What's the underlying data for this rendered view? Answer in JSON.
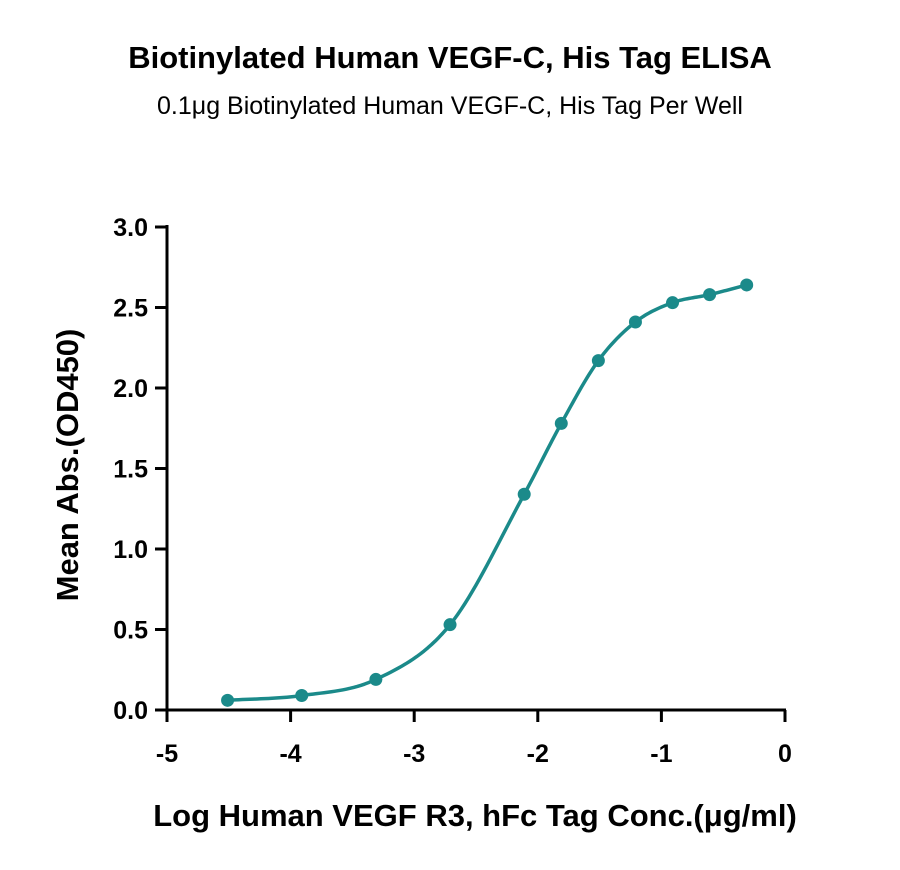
{
  "chart_data": {
    "type": "scatter",
    "title": "Biotinylated Human VEGF-C, His Tag ELISA",
    "subtitle": "0.1μg Biotinylated Human VEGF-C, His Tag Per Well",
    "xlabel": "Log Human VEGF R3, hFc Tag Conc.(μg/ml)",
    "ylabel": "Mean Abs.(OD450)",
    "xlim": [
      -5,
      0
    ],
    "ylim": [
      0,
      3.0
    ],
    "x_ticks": [
      "-5",
      "-4",
      "-3",
      "-2",
      "-1",
      "0"
    ],
    "y_ticks": [
      "0.0",
      "0.5",
      "1.0",
      "1.5",
      "2.0",
      "2.5",
      "3.0"
    ],
    "grid": false,
    "series": [
      {
        "fit": "4PL sigmoidal curve",
        "color": "#1b8a8a",
        "x": [
          -4.51,
          -3.91,
          -3.31,
          -2.71,
          -2.11,
          -1.81,
          -1.51,
          -1.21,
          -0.91,
          -0.61,
          -0.31
        ],
        "y": [
          0.06,
          0.09,
          0.19,
          0.53,
          1.34,
          1.78,
          2.17,
          2.41,
          2.53,
          2.58,
          2.64
        ]
      }
    ]
  }
}
